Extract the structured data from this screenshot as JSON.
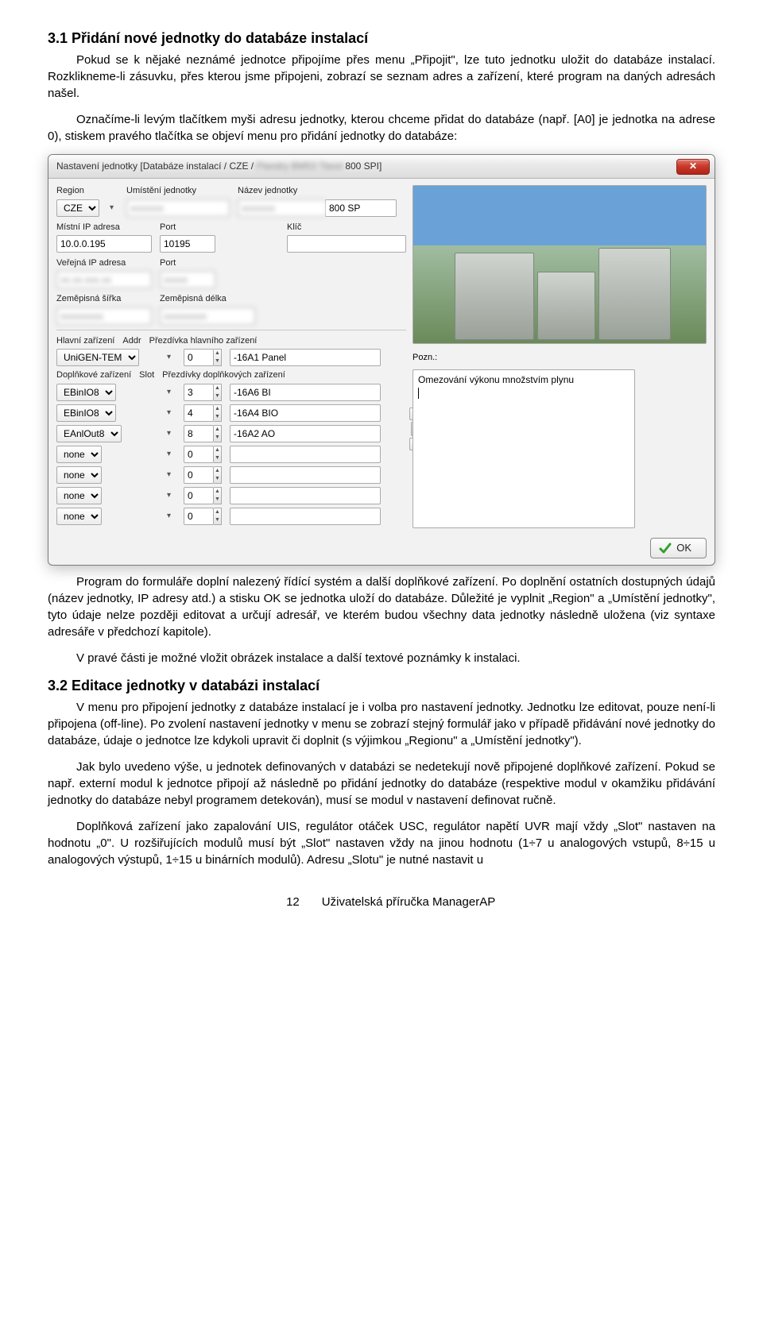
{
  "doc": {
    "section31_title": "3.1  Přidání nové jednotky do databáze instalací",
    "p31a": "Pokud se k nějaké neznámé jednotce připojíme přes menu „Připojit\", lze tuto jednotku uložit do databáze instalací. Rozklikneme-li zásuvku, přes kterou jsme připojeni, zobrazí se seznam adres a zařízení, které program na daných adresách našel.",
    "p31b": "Označíme-li levým tlačítkem myši adresu jednotky, kterou chceme přidat do databáze (např. [A0] je jednotka na adrese 0), stiskem pravého tlačítka se objeví menu pro přidání jednotky do databáze:",
    "p31c": "Program do formuláře doplní nalezený řídící systém a další doplňkové zařízení. Po doplnění ostatních dostupných údajů (název jednotky, IP adresy atd.) a stisku OK se jednotka uloží do databáze. Důležité je vyplnit „Region\" a „Umístění jednotky\", tyto údaje nelze později editovat a určují adresář, ve kterém budou všechny data jednotky následně uložena (viz syntaxe adresáře v předchozí kapitole).",
    "p31d": "V pravé části je možné vložit obrázek instalace a další textové poznámky k instalaci.",
    "section32_title": "3.2  Editace jednotky v databázi instalací",
    "p32a": "V menu pro připojení jednotky z databáze instalací je i volba pro nastavení jednotky. Jednotku lze editovat, pouze není-li připojena (off-line). Po zvolení nastavení jednotky v menu se zobrazí stejný formulář jako v případě přidávání nové jednotky do databáze, údaje o jednotce lze kdykoli upravit či doplnit (s výjimkou „Regionu\" a „Umístění jednotky\").",
    "p32b": "Jak bylo uvedeno výše, u jednotek definovaných v databázi se nedetekují nově připojené doplňkové zařízení. Pokud se např. externí modul k jednotce připojí až následně po přidání jednotky do databáze (respektive modul v okamžiku přidávání jednotky do databáze nebyl programem detekován), musí se modul v nastavení definovat ručně.",
    "p32c": "Doplňková zařízení jako zapalování UIS, regulátor otáček USC, regulátor napětí  UVR mají vždy „Slot\" nastaven na hodnotu „0\". U rozšiřujících modulů musí být „Slot\" nastaven vždy na jinou hodnotu (1÷7 u analogových vstupů, 8÷15 u analogových výstupů, 1÷15 u binárních modulů). Adresu „Slotu\" je nutné nastavit u",
    "page_number": "12",
    "footer_text": "Uživatelská příručka ManagerAP"
  },
  "dialog": {
    "title_prefix": "Nastavení jednotky [Databáze instalací / CZE /",
    "title_blur": "Plandry BM53 Tbext",
    "title_suffix": "800 SPI]",
    "labels": {
      "region": "Region",
      "umisteni": "Umístění jednotky",
      "nazev": "Název jednotky",
      "mistni_ip": "Místní IP adresa",
      "port1": "Port",
      "klic": "Klíč",
      "verejna_ip": "Veřejná IP adresa",
      "port2": "Port",
      "zs": "Zeměpisná šířka",
      "zd": "Zeměpisná délka",
      "hlavni": "Hlavní zařízení",
      "addr": "Addr",
      "prezdivka_hlavni": "Přezdívka hlavního zařízení",
      "doplnkove": "Doplňkové zařízení",
      "slot": "Slot",
      "prezdivky_dopl": "Přezdívky doplňkových zařízení",
      "pozn": "Pozn.:",
      "ok": "OK"
    },
    "values": {
      "region": "CZE",
      "umisteni_blur": "xxxxxxx",
      "nazev_blur": "xxxxxxx",
      "nazev_suffix": "800 SP",
      "mistni_ip": "10.0.0.195",
      "port1": "10195",
      "klic": "",
      "verejna_ip_blur": "xx.xx.xxx.xx",
      "port2_blur": "xxxxx",
      "zs_blur": "xxxxxxxxx",
      "zd_blur": "xxxxxxxxx",
      "main_device": "UniGEN-TEM",
      "main_addr": "0",
      "main_nick": "-16A1 Panel",
      "pozn_text": "Omezování výkonu množstvím plynu"
    },
    "addon_rows": [
      {
        "device": "EBinIO8",
        "slot": "3",
        "nick": "-16A6 BI"
      },
      {
        "device": "EBinIO8",
        "slot": "4",
        "nick": "-16A4 BIO"
      },
      {
        "device": "EAnlOut8",
        "slot": "8",
        "nick": "-16A2 AO"
      },
      {
        "device": "none",
        "slot": "0",
        "nick": ""
      },
      {
        "device": "none",
        "slot": "0",
        "nick": ""
      },
      {
        "device": "none",
        "slot": "0",
        "nick": ""
      },
      {
        "device": "none",
        "slot": "0",
        "nick": ""
      }
    ],
    "colors": {
      "titlebar_grad_top": "#fdfdfd",
      "titlebar_grad_bot": "#dcdcdc",
      "close_grad_top": "#e27a6f",
      "close_grad_bot": "#b32416",
      "ok_tick": "#33a02c"
    }
  }
}
